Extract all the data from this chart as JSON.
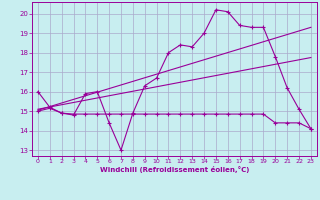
{
  "bg_color": "#c8eef0",
  "grid_color": "#aaaacc",
  "line_color": "#990099",
  "xlabel": "Windchill (Refroidissement éolien,°C)",
  "xlim": [
    -0.5,
    23.5
  ],
  "ylim": [
    12.7,
    20.6
  ],
  "yticks": [
    13,
    14,
    15,
    16,
    17,
    18,
    19,
    20
  ],
  "xticks": [
    0,
    1,
    2,
    3,
    4,
    5,
    6,
    7,
    8,
    9,
    10,
    11,
    12,
    13,
    14,
    15,
    16,
    17,
    18,
    19,
    20,
    21,
    22,
    23
  ],
  "series1_x": [
    0,
    1,
    2,
    3,
    4,
    5,
    6,
    7,
    8,
    9,
    10,
    11,
    12,
    13,
    14,
    15,
    16,
    17,
    18,
    19,
    20,
    21,
    22,
    23
  ],
  "series1_y": [
    16.0,
    15.2,
    14.9,
    14.8,
    15.9,
    16.0,
    14.4,
    13.0,
    14.9,
    16.3,
    16.7,
    18.0,
    18.4,
    18.3,
    19.0,
    20.2,
    20.1,
    19.4,
    19.3,
    19.3,
    17.8,
    16.2,
    15.1,
    14.1
  ],
  "series2_x": [
    0,
    23
  ],
  "series2_y": [
    15.05,
    19.3
  ],
  "series3_x": [
    0,
    23
  ],
  "series3_y": [
    15.1,
    17.75
  ],
  "series4_x": [
    0,
    1,
    2,
    3,
    4,
    5,
    6,
    7,
    8,
    9,
    10,
    11,
    12,
    13,
    14,
    15,
    16,
    17,
    18,
    19,
    20,
    21,
    22,
    23
  ],
  "series4_y": [
    15.0,
    15.15,
    14.9,
    14.85,
    14.85,
    14.85,
    14.85,
    14.85,
    14.85,
    14.85,
    14.85,
    14.85,
    14.85,
    14.85,
    14.85,
    14.85,
    14.85,
    14.85,
    14.85,
    14.85,
    14.4,
    14.4,
    14.4,
    14.1
  ]
}
